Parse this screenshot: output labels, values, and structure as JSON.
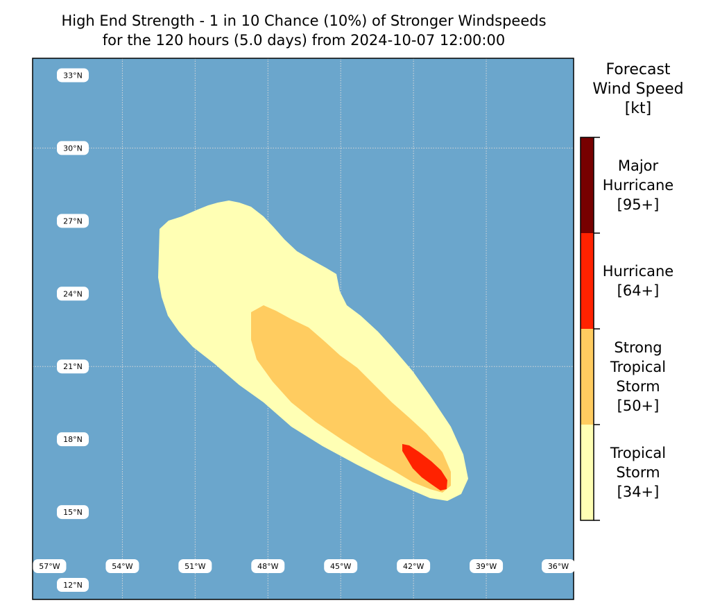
{
  "title": {
    "line1": "High End Strength - 1 in 10 Chance (10%) of Stronger Windspeeds",
    "line2": "for the 120 hours (5.0 days) from 2024-10-07 12:00:00"
  },
  "map": {
    "ocean_color": "#6ba6cc",
    "grid_color": "#d8d8d8",
    "lon_labels": [
      "57°W",
      "54°W",
      "51°W",
      "48°W",
      "45°W",
      "42°W",
      "39°W",
      "36°W"
    ],
    "lon_values": [
      -57,
      -54,
      -51,
      -48,
      -45,
      -42,
      -39,
      -36
    ],
    "lat_labels": [
      "33°N",
      "30°N",
      "27°N",
      "24°N",
      "21°N",
      "18°N",
      "15°N",
      "12°N"
    ],
    "lat_values": [
      33,
      30,
      27,
      24,
      21,
      18,
      15,
      12
    ],
    "extent": {
      "lon_min": -57.7,
      "lon_max": -35.4,
      "lat_min": 11.4,
      "lat_max": 33.7
    },
    "gridlines": {
      "lon": [
        -54,
        -51,
        -48,
        -45,
        -42,
        -39
      ],
      "lat": [
        30,
        21
      ]
    }
  },
  "colorbar": {
    "title_lines": [
      "Forecast",
      "Wind Speed",
      "[kt]"
    ],
    "categories": [
      {
        "label": "Major\nHurricane\n[95+]",
        "color": "#770000"
      },
      {
        "label": "Hurricane\n[64+]",
        "color": "#ff2200"
      },
      {
        "label": "Strong\nTropical\nStorm\n[50+]",
        "color": "#ffcc60"
      },
      {
        "label": "Tropical\nStorm\n[34+]",
        "color": "#ffffb4"
      }
    ]
  },
  "wind_zones": [
    {
      "category": "Tropical Storm [34+]",
      "color": "#ffffb4"
    },
    {
      "category": "Strong Tropical Storm [50+]",
      "color": "#ffcc60"
    },
    {
      "category": "Hurricane [64+]",
      "color": "#ff2200"
    }
  ]
}
